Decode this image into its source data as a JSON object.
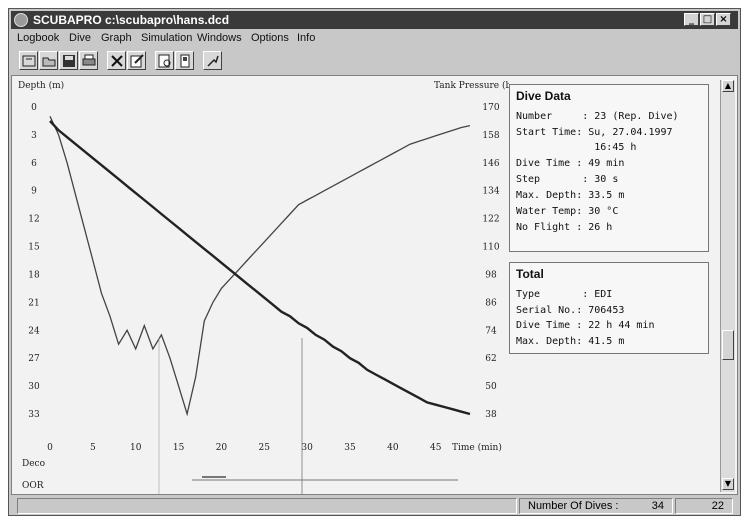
{
  "window": {
    "title": "SCUBAPRO c:\\scubapro\\hans.dcd",
    "controls": [
      "_",
      "□",
      "×"
    ]
  },
  "menu": [
    "Logbook",
    "Dive",
    "Graph",
    "Simulation",
    "Windows",
    "Options",
    "Info"
  ],
  "toolbar_icons": [
    "open-logbook-icon",
    "open-folder-icon",
    "save-icon",
    "print-icon",
    "delete-icon",
    "edit-icon",
    "preview-icon",
    "dive-computer-icon",
    "transfer-icon"
  ],
  "graph": {
    "depth_label": "Depth (m)",
    "pressure_label": "Tank Pressure (bar)",
    "time_label": "Time (min)",
    "deco_label": "Deco",
    "oor_label": "OOR",
    "depth_ticks": [
      "0",
      "3",
      "6",
      "9",
      "12",
      "15",
      "18",
      "21",
      "24",
      "27",
      "30",
      "33"
    ],
    "pressure_ticks": [
      "170",
      "158",
      "146",
      "134",
      "122",
      "110",
      "98",
      "86",
      "74",
      "62",
      "50",
      "38"
    ],
    "time_ticks": [
      "0",
      "5",
      "10",
      "15",
      "20",
      "25",
      "30",
      "35",
      "40",
      "45"
    ]
  },
  "chart_data": {
    "type": "line",
    "xlabel": "Time (min)",
    "ylabel": "Depth (m)",
    "y2label": "Tank Pressure (bar)",
    "xlim": [
      0,
      49
    ],
    "ylim": [
      0,
      33
    ],
    "y2lim": [
      38,
      170
    ],
    "series": [
      {
        "name": "Depth",
        "x": [
          0,
          1,
          2,
          3,
          4,
          5,
          6,
          7,
          8,
          9,
          10,
          11,
          12,
          13,
          14,
          15,
          16,
          17,
          18,
          19,
          20,
          21,
          22,
          23,
          24,
          25,
          26,
          27,
          28,
          29,
          30,
          31,
          32,
          33,
          34,
          35,
          36,
          37,
          38,
          39,
          40,
          41,
          42,
          43,
          44,
          45,
          46,
          47,
          48,
          49
        ],
        "values": [
          1,
          3,
          6,
          9.5,
          13,
          16.5,
          20,
          22.5,
          25.5,
          24,
          26,
          23.5,
          26,
          24.5,
          27,
          30,
          33,
          29,
          23,
          21,
          19.5,
          18.5,
          17.5,
          16.5,
          15.5,
          14.5,
          13.5,
          12.5,
          11.5,
          10.5,
          10,
          9.5,
          9,
          8.5,
          8,
          7.5,
          7,
          6.5,
          6,
          5.5,
          5,
          4.5,
          4,
          3.7,
          3.4,
          3.1,
          2.8,
          2.5,
          2.2,
          2
        ]
      },
      {
        "name": "Tank Pressure",
        "x": [
          0,
          1,
          2,
          3,
          4,
          5,
          6,
          7,
          8,
          9,
          10,
          11,
          12,
          13,
          14,
          15,
          16,
          17,
          18,
          19,
          20,
          21,
          22,
          23,
          24,
          25,
          26,
          27,
          28,
          29,
          30,
          31,
          32,
          33,
          34,
          35,
          36,
          37,
          38,
          39,
          40,
          41,
          42,
          43,
          44,
          45,
          46,
          47,
          48,
          49
        ],
        "values": [
          164,
          160,
          157,
          154,
          151,
          148,
          145,
          142,
          139,
          136,
          133,
          130,
          127,
          124,
          121,
          118,
          115,
          112,
          109,
          106,
          103,
          100,
          97,
          94,
          91,
          88,
          85,
          82,
          80,
          77,
          75,
          72,
          70,
          67,
          65,
          62,
          60,
          57,
          55,
          53,
          51,
          49,
          47,
          45,
          43,
          42,
          41,
          40,
          39,
          38
        ]
      }
    ]
  },
  "dive_data": {
    "title": "Dive Data",
    "rows": [
      "Number     : 23 (Rep. Dive)",
      "Start Time: Su, 27.04.1997",
      "             16:45 h",
      "Dive Time : 49 min",
      "Step       : 30 s",
      "Max. Depth: 33.5 m",
      "Water Temp: 30 °C",
      "No Flight : 26 h"
    ]
  },
  "total": {
    "title": "Total",
    "rows": [
      "Type       : EDI",
      "Serial No.: 706453",
      "Dive Time : 22 h 44 min",
      "Max. Depth: 41.5 m"
    ]
  },
  "status": {
    "label": "Number Of Dives :",
    "count": "34",
    "current": "22"
  }
}
